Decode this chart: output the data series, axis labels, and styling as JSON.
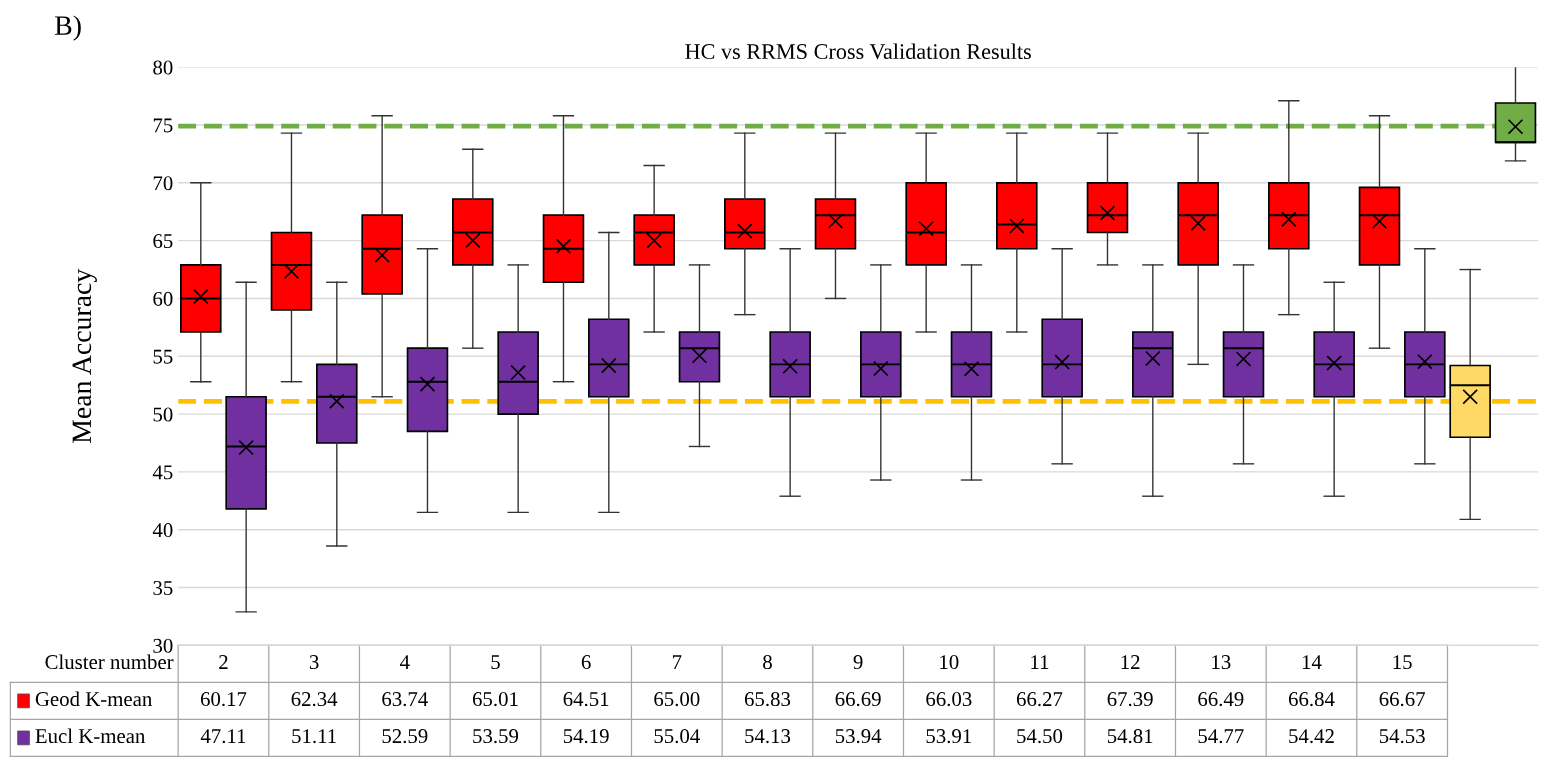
{
  "chart_data": {
    "type": "box",
    "title": "HC vs RRMS Cross Validation Results",
    "xlabel": "Cluster number",
    "ylabel": "Mean Accuracy",
    "annotations": [
      "B)"
    ],
    "categories": [
      "2",
      "3",
      "4",
      "5",
      "6",
      "7",
      "8",
      "9",
      "10",
      "11",
      "12",
      "13",
      "14",
      "15",
      null
    ],
    "ylim": [
      30,
      80
    ],
    "yticks": [
      30,
      35,
      40,
      45,
      50,
      55,
      60,
      65,
      70,
      75,
      80
    ],
    "grid": "y",
    "marker": "cross",
    "legend": "bottom left",
    "ref_lines": [
      {
        "axis": "y",
        "value": 74.9,
        "color": "#70ad47",
        "line_style": "dashed"
      },
      {
        "axis": "y",
        "value": 51.1,
        "color": "#ffc000",
        "line_style": "dashed"
      }
    ],
    "series": [
      {
        "name": "Geod K-mean",
        "color": "#ff0000",
        "value_labels": [
          "60.17",
          "62.34",
          "63.74",
          "65.01",
          "64.51",
          "65.00",
          "65.83",
          "66.69",
          "66.03",
          "66.27",
          "67.39",
          "66.49",
          "66.84",
          "66.67",
          null
        ],
        "boxes": [
          {
            "low": 52.8,
            "q1": 57.1,
            "median": 60.0,
            "q3": 62.9,
            "high": 70.0,
            "mean": 60.17
          },
          {
            "low": 52.8,
            "q1": 59.0,
            "median": 62.9,
            "q3": 65.7,
            "high": 74.3,
            "mean": 62.34
          },
          {
            "low": 51.5,
            "q1": 60.4,
            "median": 64.3,
            "q3": 67.2,
            "high": 75.8,
            "mean": 63.74
          },
          {
            "low": 55.7,
            "q1": 62.9,
            "median": 65.7,
            "q3": 68.6,
            "high": 72.9,
            "mean": 65.01
          },
          {
            "low": 52.8,
            "q1": 61.4,
            "median": 64.3,
            "q3": 67.2,
            "high": 75.8,
            "mean": 64.51
          },
          {
            "low": 57.1,
            "q1": 62.9,
            "median": 65.7,
            "q3": 67.2,
            "high": 71.5,
            "mean": 65.0
          },
          {
            "low": 58.6,
            "q1": 64.3,
            "median": 65.7,
            "q3": 68.6,
            "high": 74.3,
            "mean": 65.83
          },
          {
            "low": 60.0,
            "q1": 64.3,
            "median": 67.2,
            "q3": 68.6,
            "high": 74.3,
            "mean": 66.69
          },
          {
            "low": 57.1,
            "q1": 62.9,
            "median": 65.7,
            "q3": 70.0,
            "high": 74.3,
            "mean": 66.03
          },
          {
            "low": 57.1,
            "q1": 64.3,
            "median": 66.4,
            "q3": 70.0,
            "high": 74.3,
            "mean": 66.27
          },
          {
            "low": 62.9,
            "q1": 65.7,
            "median": 67.2,
            "q3": 70.0,
            "high": 74.3,
            "mean": 67.39
          },
          {
            "low": 54.3,
            "q1": 62.9,
            "median": 67.2,
            "q3": 70.0,
            "high": 74.3,
            "mean": 66.49
          },
          {
            "low": 58.6,
            "q1": 64.3,
            "median": 67.2,
            "q3": 70.0,
            "high": 77.1,
            "mean": 66.84
          },
          {
            "low": 55.7,
            "q1": 62.9,
            "median": 67.2,
            "q3": 69.6,
            "high": 75.8,
            "mean": 66.67
          },
          null
        ]
      },
      {
        "name": "Eucl K-mean",
        "color": "#7030a0",
        "value_labels": [
          "47.11",
          "51.11",
          "52.59",
          "53.59",
          "54.19",
          "55.04",
          "54.13",
          "53.94",
          "53.91",
          "54.50",
          "54.81",
          "54.77",
          "54.42",
          "54.53",
          null
        ],
        "boxes": [
          {
            "low": 32.9,
            "q1": 41.8,
            "median": 47.2,
            "q3": 51.5,
            "high": 61.4,
            "mean": 47.11
          },
          {
            "low": 38.6,
            "q1": 47.5,
            "median": 51.5,
            "q3": 54.3,
            "high": 61.4,
            "mean": 51.11
          },
          {
            "low": 41.5,
            "q1": 48.5,
            "median": 52.8,
            "q3": 55.7,
            "high": 64.3,
            "mean": 52.59
          },
          {
            "low": 41.5,
            "q1": 50.0,
            "median": 52.8,
            "q3": 57.1,
            "high": 62.9,
            "mean": 53.59
          },
          {
            "low": 41.5,
            "q1": 51.5,
            "median": 54.3,
            "q3": 58.2,
            "high": 65.7,
            "mean": 54.19
          },
          {
            "low": 47.2,
            "q1": 52.8,
            "median": 55.7,
            "q3": 57.1,
            "high": 62.9,
            "mean": 55.04
          },
          {
            "low": 42.9,
            "q1": 51.5,
            "median": 54.3,
            "q3": 57.1,
            "high": 64.3,
            "mean": 54.13
          },
          {
            "low": 44.3,
            "q1": 51.5,
            "median": 54.3,
            "q3": 57.1,
            "high": 62.9,
            "mean": 53.94
          },
          {
            "low": 44.3,
            "q1": 51.5,
            "median": 54.3,
            "q3": 57.1,
            "high": 62.9,
            "mean": 53.91
          },
          {
            "low": 45.7,
            "q1": 51.5,
            "median": 54.3,
            "q3": 58.2,
            "high": 64.3,
            "mean": 54.5
          },
          {
            "low": 42.9,
            "q1": 51.5,
            "median": 55.7,
            "q3": 57.1,
            "high": 62.9,
            "mean": 54.81
          },
          {
            "low": 45.7,
            "q1": 51.5,
            "median": 55.7,
            "q3": 57.1,
            "high": 62.9,
            "mean": 54.77
          },
          {
            "low": 42.9,
            "q1": 51.5,
            "median": 54.3,
            "q3": 57.1,
            "high": 61.4,
            "mean": 54.42
          },
          {
            "low": 45.7,
            "q1": 51.5,
            "median": 54.3,
            "q3": 57.1,
            "high": 64.3,
            "mean": 54.53
          },
          null
        ]
      },
      {
        "color": "#ffd966",
        "boxes": [
          null,
          null,
          null,
          null,
          null,
          null,
          null,
          null,
          null,
          null,
          null,
          null,
          null,
          null,
          {
            "low": 40.9,
            "q1": 48.0,
            "median": 52.5,
            "q3": 54.2,
            "high": 62.5,
            "mean": 51.5
          }
        ]
      },
      {
        "color": "#70ad47",
        "boxes": [
          null,
          null,
          null,
          null,
          null,
          null,
          null,
          null,
          null,
          null,
          null,
          null,
          null,
          null,
          {
            "low": 71.9,
            "q1": 73.5,
            "median": 73.5,
            "q3": 76.9,
            "high": 80.2,
            "mean": 74.85
          }
        ]
      }
    ]
  }
}
